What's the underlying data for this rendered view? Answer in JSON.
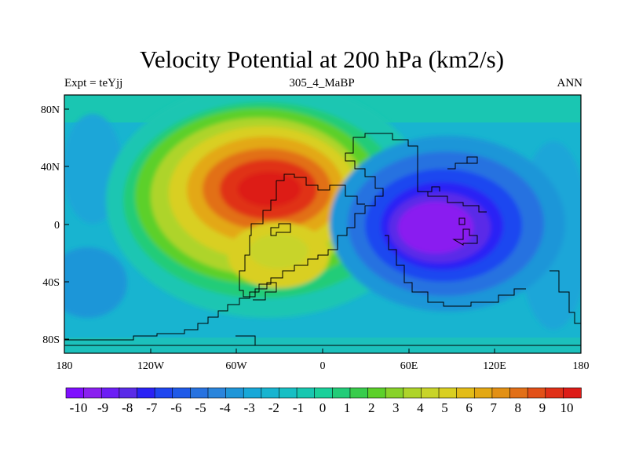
{
  "title": "Velocity Potential at 200 hPa (km2/s)",
  "subtitle_left": "Expt = teYjj",
  "subtitle_center": "305_4_MaBP",
  "subtitle_right": "ANN",
  "chart_data": {
    "type": "heatmap",
    "projection": "cylindrical-equidistant",
    "variable": "velocity potential",
    "level": "200 hPa",
    "units": "km2/s",
    "lon_range": [
      -180,
      180
    ],
    "lat_range": [
      -90,
      90
    ],
    "x_ticks": [
      "180",
      "120W",
      "60W",
      "0",
      "60E",
      "120E",
      "180"
    ],
    "y_ticks": [
      "80N",
      "40N",
      "0",
      "40S",
      "80S"
    ],
    "colorbar": {
      "labels": [
        "-10",
        "-9",
        "-8",
        "-7",
        "-6",
        "-5",
        "-4",
        "-3",
        "-2",
        "-1",
        "0",
        "1",
        "2",
        "3",
        "4",
        "5",
        "6",
        "7",
        "8",
        "9",
        "10"
      ],
      "colors": [
        "#7f0fff",
        "#8a1ff0",
        "#6c1ef5",
        "#5a2be8",
        "#2a22f5",
        "#1f46f0",
        "#1f5ae8",
        "#2772e0",
        "#2a85dc",
        "#1f96d8",
        "#18a8d8",
        "#18b4d0",
        "#18bfc4",
        "#18c7b0",
        "#1ad09a",
        "#22cc78",
        "#38cc4c",
        "#5cd02a",
        "#88d22a",
        "#aed42a",
        "#c8d42a",
        "#d9cf22",
        "#e3bc18",
        "#e3a814",
        "#e29014",
        "#e27018",
        "#e25018",
        "#e03018",
        "#dd1c18"
      ]
    },
    "features": [
      {
        "name": "maximum",
        "lon": -35,
        "lat": 25,
        "value": 10
      },
      {
        "name": "minimum",
        "lon": 75,
        "lat": 0,
        "value": -10
      }
    ]
  }
}
